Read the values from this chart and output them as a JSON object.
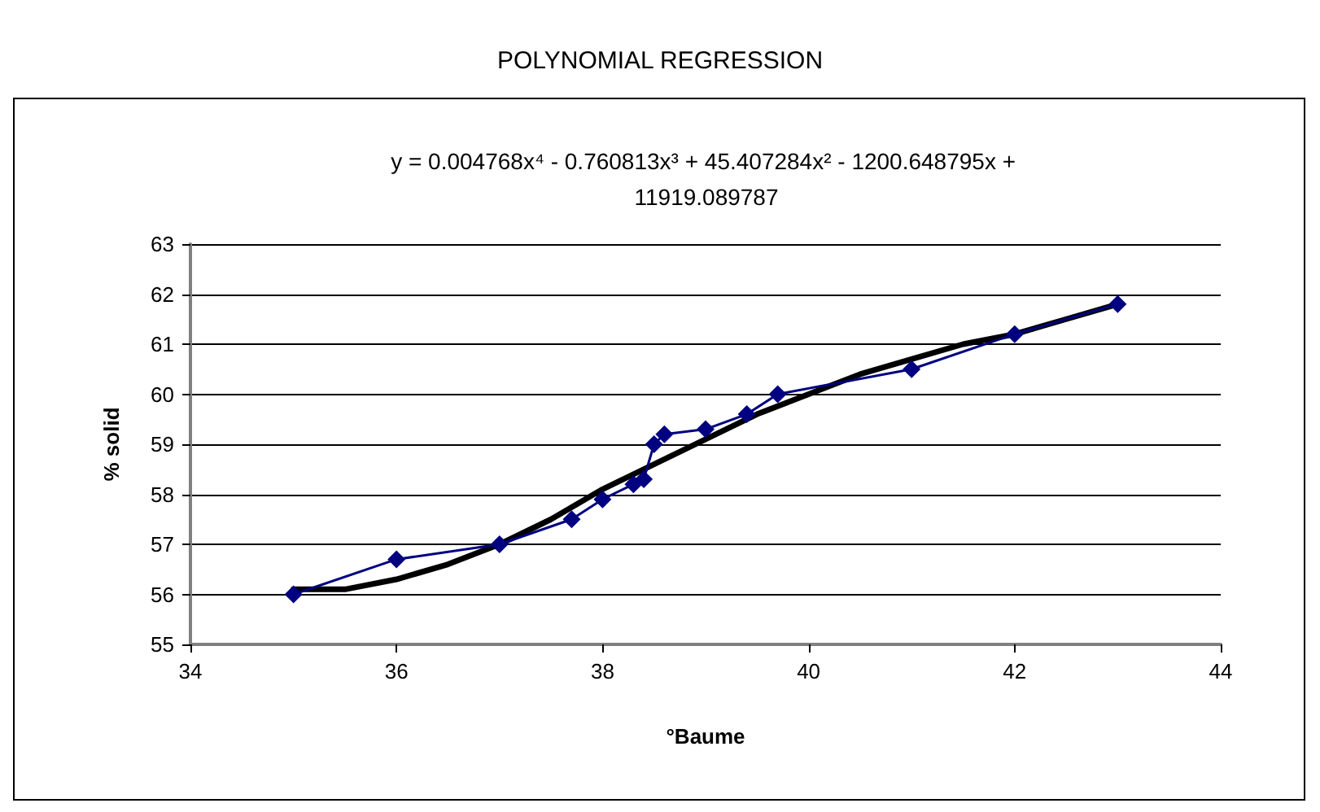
{
  "chart_data": {
    "type": "line",
    "title": "POLYNOMIAL REGRESSION",
    "xlabel": "°Baume",
    "ylabel": "% solid",
    "annotations": [
      "y = 0.004768x⁴ - 0.760813x³ + 45.407284x² - 1200.648795x + 11919.089787"
    ],
    "series": [
      {
        "color": "#000080",
        "marker": "diamond",
        "x": [
          35,
          36,
          37,
          37.7,
          38,
          38.3,
          38.4,
          38.5,
          38.6,
          39,
          39.4,
          39.7,
          41,
          42,
          43
        ],
        "values": [
          56,
          56.7,
          57,
          57.5,
          57.9,
          58.2,
          58.3,
          59,
          59.2,
          59.3,
          59.6,
          60,
          60.5,
          61.2,
          61.8
        ]
      },
      {
        "color": "#000000",
        "marker": "none",
        "x": [
          35,
          35.5,
          36,
          36.5,
          37,
          37.5,
          38,
          38.5,
          39,
          39.5,
          40,
          40.5,
          41,
          41.5,
          42,
          42.5,
          43
        ],
        "values": [
          56.1,
          56.1,
          56.3,
          56.6,
          57,
          57.5,
          58.1,
          58.6,
          59.1,
          59.6,
          60,
          60.4,
          60.7,
          61,
          61.2,
          61.5,
          61.8
        ]
      }
    ],
    "xlim": [
      34,
      44
    ],
    "xticks": [
      34,
      36,
      38,
      40,
      42,
      44
    ],
    "ylim": [
      55,
      63
    ],
    "yticks": [
      55,
      56,
      57,
      58,
      59,
      60,
      61,
      62,
      63
    ],
    "grid": "y"
  }
}
